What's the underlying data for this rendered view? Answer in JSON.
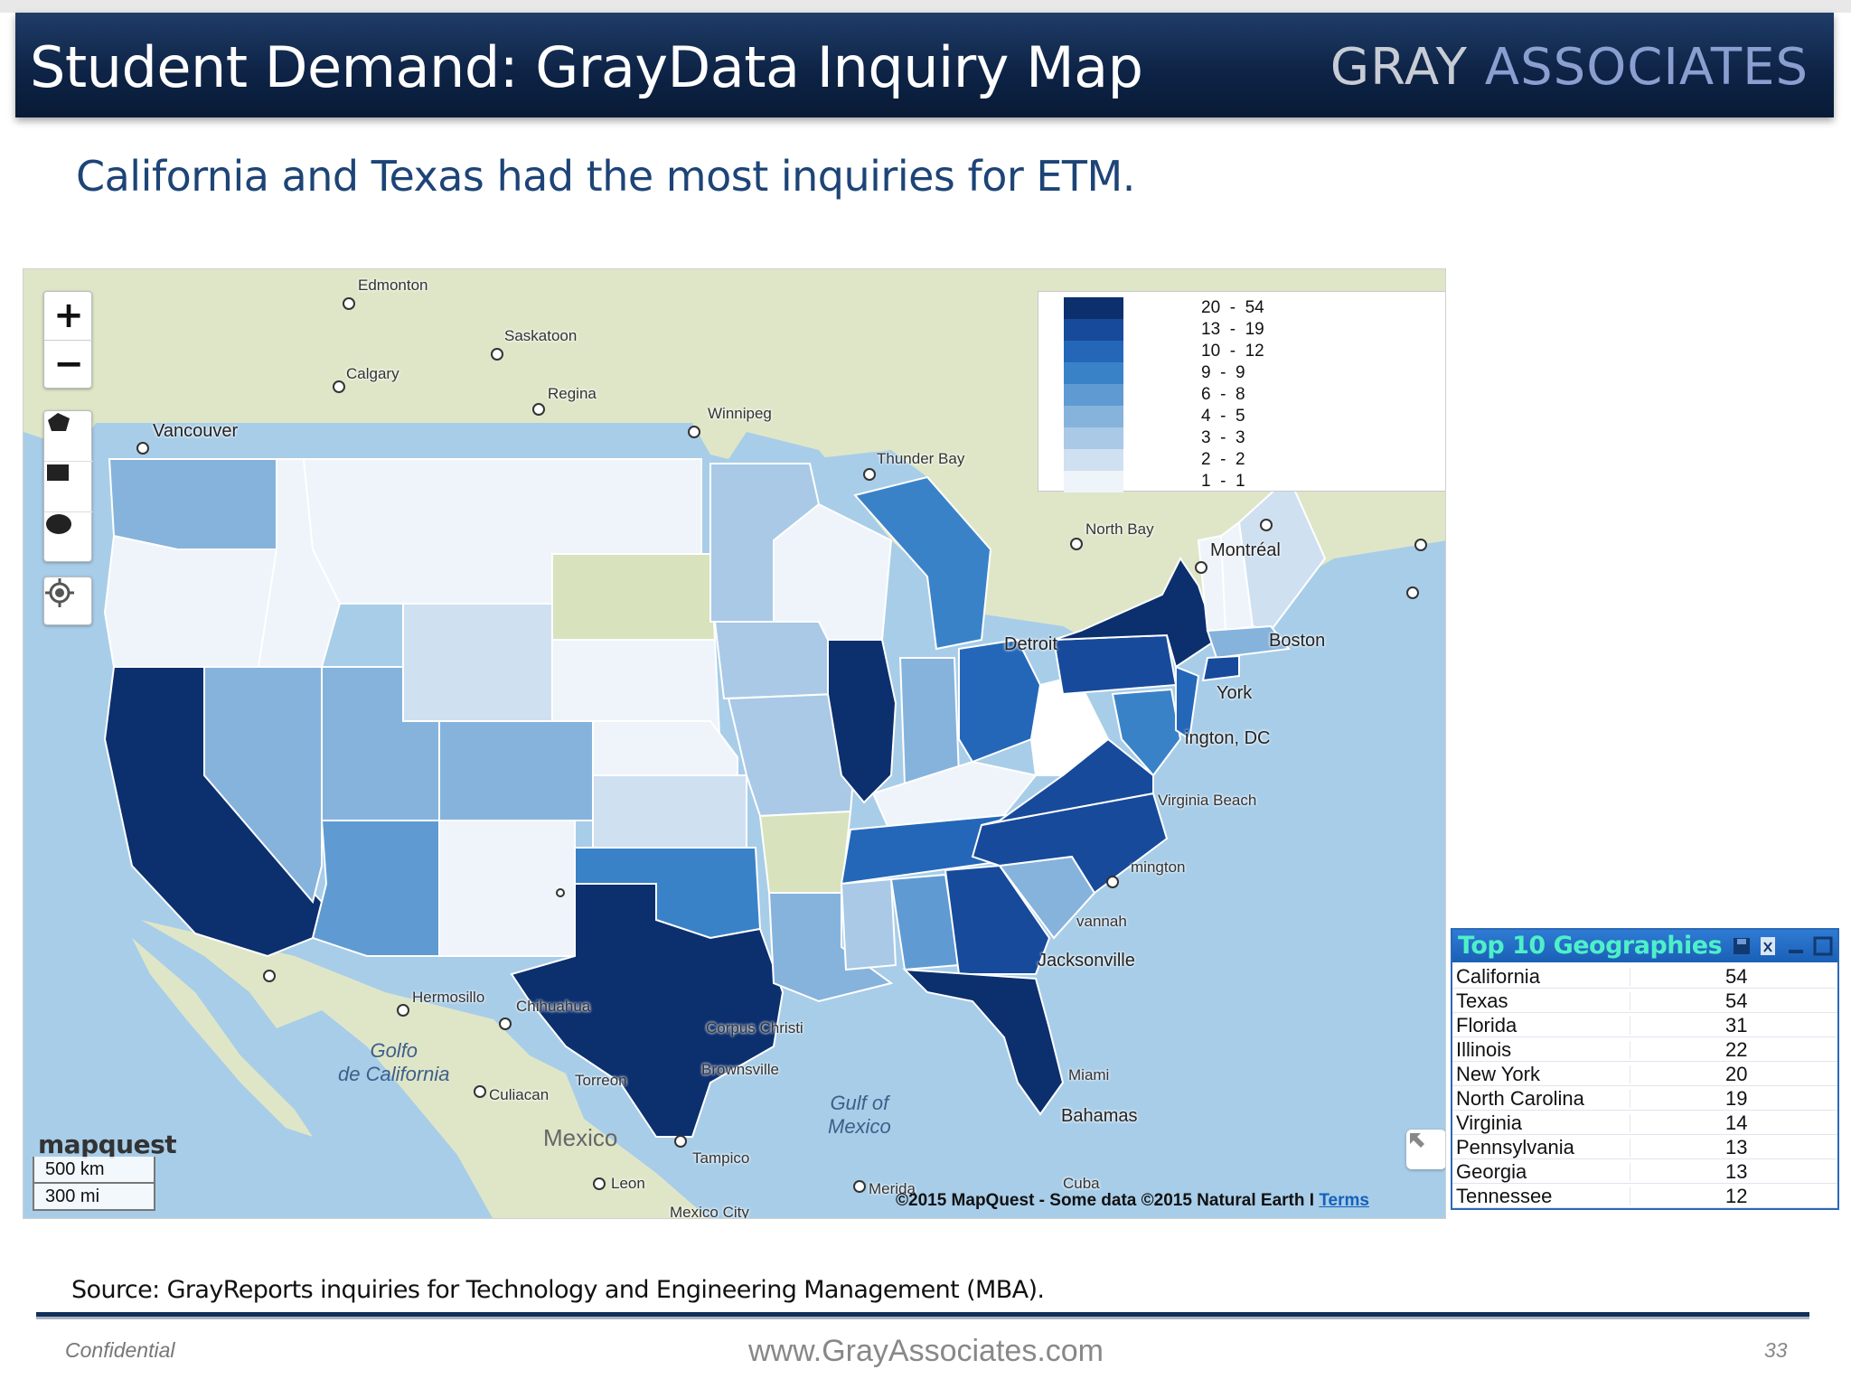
{
  "header": {
    "title": "Student Demand:  GrayData Inquiry Map",
    "logo_gray": "GRAY",
    "logo_associates": "ASSOCIATES"
  },
  "subtitle": "California and Texas had the most inquiries for ETM.",
  "map": {
    "zoom_in": "+",
    "zoom_out": "−",
    "legend": [
      {
        "range": "20  -  54",
        "color": "#0c2f6e"
      },
      {
        "range": "13  -  19",
        "color": "#174a9a"
      },
      {
        "range": "10  -  12",
        "color": "#2467b8"
      },
      {
        "range": "9  -  9",
        "color": "#3a82c8"
      },
      {
        "range": "6  -  8",
        "color": "#5f9bd2"
      },
      {
        "range": "4  -  5",
        "color": "#86b3dc"
      },
      {
        "range": "3  -  3",
        "color": "#a9c9e6"
      },
      {
        "range": "2  -  2",
        "color": "#cfe0f1"
      },
      {
        "range": "1  -  1",
        "color": "#eef4fa"
      }
    ],
    "cities": {
      "edmonton": "Edmonton",
      "saskatoon": "Saskatoon",
      "calgary": "Calgary",
      "regina": "Regina",
      "winnipeg": "Winnipeg",
      "vancouver": "Vancouver",
      "thunder_bay": "Thunder Bay",
      "north_bay": "North Bay",
      "montreal": "Montréal",
      "boston": "Boston",
      "york": "York",
      "washington": "ington, DC",
      "detroit": "Detroit",
      "virginia_beach": "Virginia Beach",
      "wilmington": "mington",
      "savannah": "vannah",
      "jacksonville": "Jacksonville",
      "miami": "Miami",
      "bahamas": "Bahamas",
      "hermosillo": "Hermosillo",
      "chihuahua": "Chihuahua",
      "corpus_christi": "Corpus Christi",
      "brownsville": "Brownsville",
      "torreon": "Torreon",
      "culiacan": "Culiacan",
      "tampico": "Tampico",
      "leon": "Leon",
      "merida": "Merida",
      "mexico_city": "Mexico City",
      "cuba": "Cuba"
    },
    "water": {
      "gulf_california": "Golfo\nde California",
      "gulf_mexico": "Gulf of\nMexico"
    },
    "country_mexico": "Mexico",
    "provider": "mapquest",
    "scale_km": "500 km",
    "scale_mi": "300 mi",
    "attribution": "©2015 MapQuest  -  Some data ©2015 Natural Earth I ",
    "terms": "Terms",
    "state_colors": {
      "l1": "#eef4fa",
      "l2": "#cfe0f1",
      "l3": "#a9c9e6",
      "l4": "#86b3dc",
      "l5": "#5f9bd2",
      "l6": "#3a82c8",
      "l7": "#2467b8",
      "l8": "#174a9a",
      "l9": "#0c2f6e",
      "nodata": "#d8e2bd"
    }
  },
  "top10": {
    "title": "Top 10 Geographies",
    "rows": [
      {
        "name": "California",
        "value": "54"
      },
      {
        "name": "Texas",
        "value": "54"
      },
      {
        "name": "Florida",
        "value": "31"
      },
      {
        "name": "Illinois",
        "value": "22"
      },
      {
        "name": "New York",
        "value": "20"
      },
      {
        "name": "North Carolina",
        "value": "19"
      },
      {
        "name": "Virginia",
        "value": "14"
      },
      {
        "name": "Pennsylvania",
        "value": "13"
      },
      {
        "name": "Georgia",
        "value": "13"
      },
      {
        "name": "Tennessee",
        "value": "12"
      }
    ]
  },
  "footer": {
    "source": "Source: GrayReports inquiries for Technology and Engineering Management (MBA).",
    "confidential": "Confidential",
    "website": "www.GrayAssociates.com",
    "page": "33"
  }
}
